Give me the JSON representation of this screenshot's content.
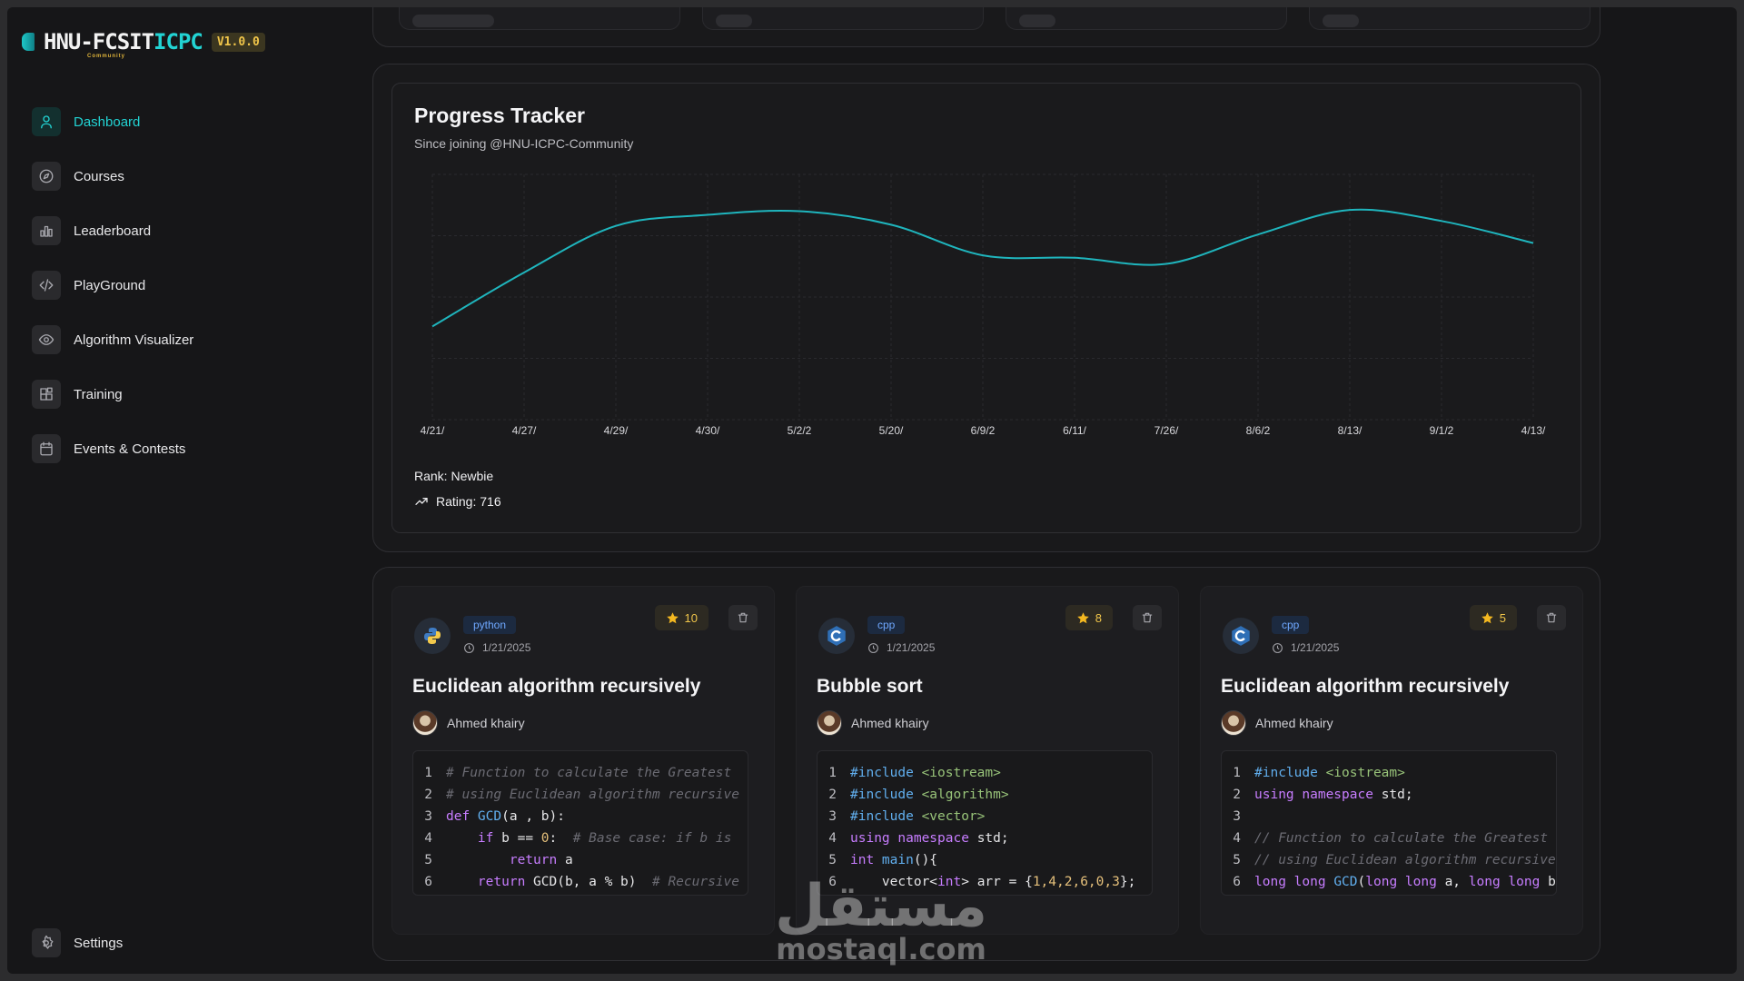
{
  "app": {
    "logo_text_a": "HNU-FCSIT",
    "logo_text_b": "ICPC",
    "logo_sub": "Community",
    "version": "V1.0.0"
  },
  "sidebar": {
    "items": [
      {
        "label": "Dashboard",
        "icon": "user-icon",
        "active": true
      },
      {
        "label": "Courses",
        "icon": "compass-icon",
        "active": false
      },
      {
        "label": "Leaderboard",
        "icon": "bar-chart-icon",
        "active": false
      },
      {
        "label": "PlayGround",
        "icon": "code-icon",
        "active": false
      },
      {
        "label": "Algorithm Visualizer",
        "icon": "eye-icon",
        "active": false
      },
      {
        "label": "Training",
        "icon": "blocks-icon",
        "active": false
      },
      {
        "label": "Events & Contests",
        "icon": "calendar-icon",
        "active": false
      }
    ],
    "settings_label": "Settings"
  },
  "progress": {
    "title": "Progress Tracker",
    "subtitle": "Since joining @HNU-ICPC-Community",
    "rank_label": "Rank: Newbie",
    "rating_label": "Rating: 716"
  },
  "chart_data": {
    "type": "line",
    "title": "Progress Tracker",
    "subtitle": "Since joining @HNU-ICPC-Community",
    "categories": [
      "4/21/",
      "4/27/",
      "4/29/",
      "4/30/",
      "5/2/2",
      "5/20/",
      "6/9/2",
      "6/11/",
      "7/26/",
      "8/6/2",
      "8/13/",
      "9/1/2",
      "4/13/"
    ],
    "series": [
      {
        "values": [
          0.38,
          0.6,
          0.79,
          0.835,
          0.85,
          0.795,
          0.67,
          0.66,
          0.635,
          0.755,
          0.855,
          0.81,
          0.72
        ],
        "color": "#1fb5bd"
      }
    ],
    "ylim": [
      0,
      1
    ],
    "grid": true,
    "xlabel": "",
    "ylabel": ""
  },
  "snippets": [
    {
      "lang": "python",
      "lang_icon": "python-icon",
      "date": "1/21/2025",
      "stars": "10",
      "title": "Euclidean algorithm recursively",
      "author": "Ahmed khairy",
      "code": [
        [
          [
            "# Function to calculate the Greatest",
            "c-com"
          ]
        ],
        [
          [
            "# using Euclidean algorithm recursive",
            "c-com"
          ]
        ],
        [
          [
            "def ",
            "c-kw"
          ],
          [
            "GCD",
            "c-fn"
          ],
          [
            "(a , b):",
            "c-txt"
          ]
        ],
        [
          [
            "    ",
            "c-txt"
          ],
          [
            "if ",
            "c-kw"
          ],
          [
            "b == ",
            "c-txt"
          ],
          [
            "0",
            "c-num"
          ],
          [
            ":  ",
            "c-txt"
          ],
          [
            "# Base case: if b is",
            "c-com"
          ]
        ],
        [
          [
            "        ",
            "c-txt"
          ],
          [
            "return ",
            "c-kw"
          ],
          [
            "a",
            "c-txt"
          ]
        ],
        [
          [
            "    ",
            "c-txt"
          ],
          [
            "return ",
            "c-kw"
          ],
          [
            "GCD(b, a % b)  ",
            "c-txt"
          ],
          [
            "# Recursive",
            "c-com"
          ]
        ]
      ]
    },
    {
      "lang": "cpp",
      "lang_icon": "cpp-icon",
      "date": "1/21/2025",
      "stars": "8",
      "title": "Bubble sort",
      "author": "Ahmed khairy",
      "code": [
        [
          [
            "#include ",
            "c-pre"
          ],
          [
            "<iostream>",
            "c-str"
          ]
        ],
        [
          [
            "#include ",
            "c-pre"
          ],
          [
            "<algorithm>",
            "c-str"
          ]
        ],
        [
          [
            "#include ",
            "c-pre"
          ],
          [
            "<vector>",
            "c-str"
          ]
        ],
        [
          [
            "using ",
            "c-kw"
          ],
          [
            "namespace ",
            "c-kw"
          ],
          [
            "std;",
            "c-txt"
          ]
        ],
        [
          [
            "int ",
            "c-type"
          ],
          [
            "main",
            "c-fn"
          ],
          [
            "(){",
            "c-txt"
          ]
        ],
        [
          [
            "    vector<",
            "c-txt"
          ],
          [
            "int",
            "c-type"
          ],
          [
            "> arr = {",
            "c-txt"
          ],
          [
            "1,4,2,6,0,3",
            "c-num"
          ],
          [
            "};",
            "c-txt"
          ]
        ]
      ]
    },
    {
      "lang": "cpp",
      "lang_icon": "cpp-icon",
      "date": "1/21/2025",
      "stars": "5",
      "title": "Euclidean algorithm recursively",
      "author": "Ahmed khairy",
      "code": [
        [
          [
            "#include ",
            "c-pre"
          ],
          [
            "<iostream>",
            "c-str"
          ]
        ],
        [
          [
            "using ",
            "c-kw"
          ],
          [
            "namespace ",
            "c-kw"
          ],
          [
            "std;",
            "c-txt"
          ]
        ],
        [
          [
            "",
            "c-txt"
          ]
        ],
        [
          [
            "// Function to calculate the Greatest",
            "c-com"
          ]
        ],
        [
          [
            "// using Euclidean algorithm recursive",
            "c-com"
          ]
        ],
        [
          [
            "long long ",
            "c-type"
          ],
          [
            "GCD",
            "c-fn"
          ],
          [
            "(",
            "c-txt"
          ],
          [
            "long long ",
            "c-type"
          ],
          [
            "a, ",
            "c-txt"
          ],
          [
            "long long ",
            "c-type"
          ],
          [
            "b",
            "c-txt"
          ]
        ]
      ]
    }
  ],
  "watermark": {
    "arabic": "مستقل",
    "latin": "mostaql.com"
  },
  "colors": {
    "accent": "#22d3d3",
    "star": "#f4b820",
    "line": "#1fb5bd"
  }
}
